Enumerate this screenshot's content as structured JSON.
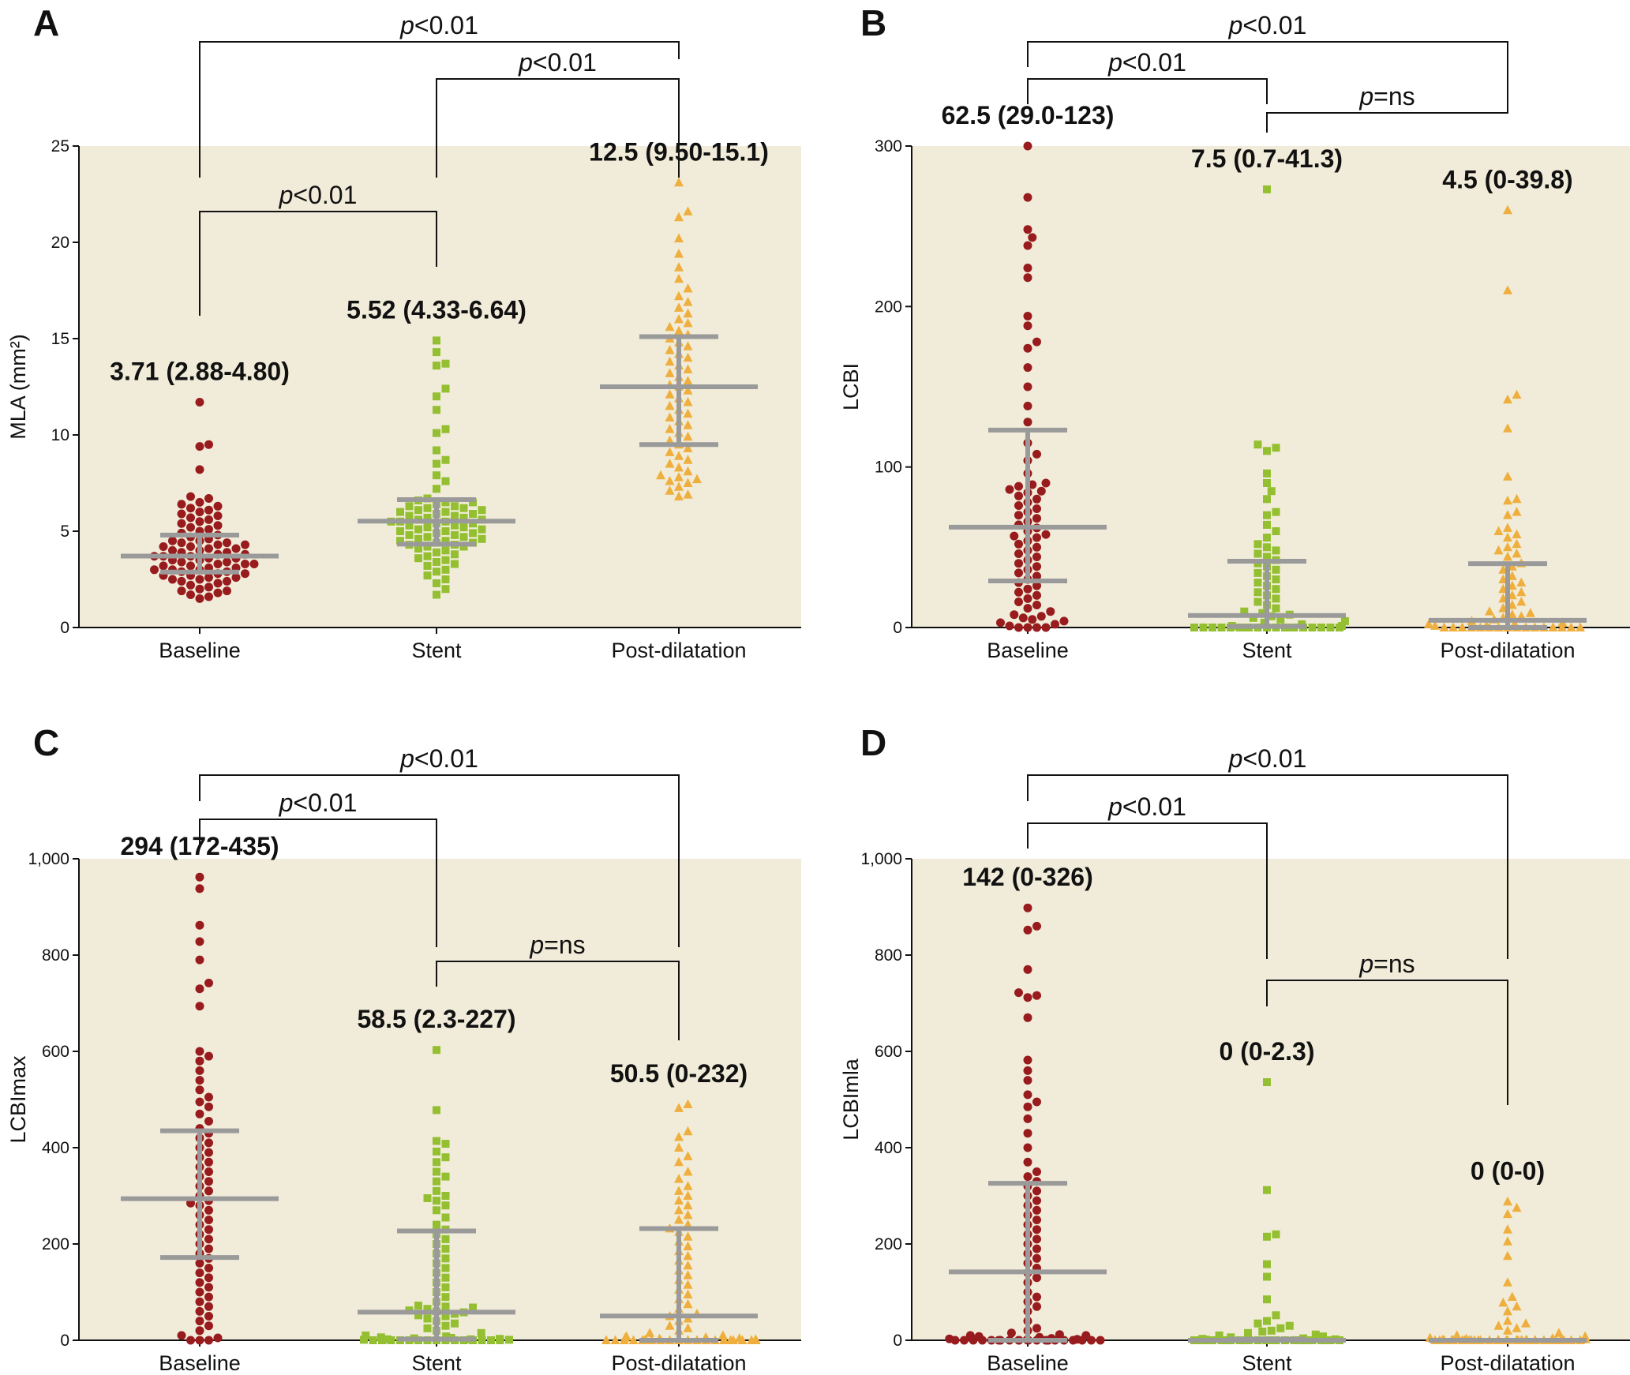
{
  "colors": {
    "plot_bg": "#f1ecd9",
    "baseline": "#981b1e",
    "stent": "#93bf31",
    "post": "#efaf3e",
    "summary_bar": "#9a9a9a",
    "bracket": "#111111"
  },
  "chart_data": [
    {
      "panel_label": "A",
      "type": "scatter",
      "ylabel": "MLA (mm²)",
      "ylim": [
        0,
        25
      ],
      "yticks": [
        0,
        5,
        10,
        15,
        20,
        25
      ],
      "ytick_labels": [
        "0",
        "5",
        "10",
        "15",
        "20",
        "25"
      ],
      "categories": [
        "Baseline",
        "Stent",
        "Post-dilatation"
      ],
      "markers": [
        "circle",
        "square",
        "triangle"
      ],
      "summary": [
        {
          "median": 3.71,
          "q1": 2.88,
          "q3": 4.8,
          "label": "3.71 (2.88-4.80)"
        },
        {
          "median": 5.52,
          "q1": 4.33,
          "q3": 6.64,
          "label": "5.52 (4.33-6.64)"
        },
        {
          "median": 12.5,
          "q1": 9.5,
          "q3": 15.1,
          "label": "12.5 (9.50-15.1)"
        }
      ],
      "comparisons": [
        {
          "from": 0,
          "to": 1,
          "p_symbol": "p",
          "text": "<0.01"
        },
        {
          "from": 1,
          "to": 2,
          "p_symbol": "p",
          "text": "<0.01"
        },
        {
          "from": 0,
          "to": 2,
          "p_symbol": "p",
          "text": "<0.01"
        }
      ],
      "points": [
        [
          11.7,
          9.5,
          9.4,
          8.2,
          6.8,
          6.7,
          6.5,
          6.4,
          6.3,
          6.2,
          6.1,
          6.0,
          5.9,
          5.8,
          5.7,
          5.6,
          5.5,
          5.4,
          5.3,
          5.2,
          5.1,
          5.0,
          4.9,
          4.8,
          4.7,
          4.6,
          4.5,
          4.5,
          4.4,
          4.4,
          4.3,
          4.3,
          4.2,
          4.2,
          4.1,
          4.1,
          4.0,
          4.0,
          3.9,
          3.9,
          3.8,
          3.8,
          3.7,
          3.7,
          3.7,
          3.6,
          3.6,
          3.5,
          3.5,
          3.4,
          3.4,
          3.3,
          3.3,
          3.3,
          3.2,
          3.2,
          3.1,
          3.1,
          3.0,
          3.0,
          3.0,
          2.9,
          2.9,
          2.8,
          2.8,
          2.7,
          2.7,
          2.6,
          2.6,
          2.5,
          2.5,
          2.4,
          2.4,
          2.3,
          2.2,
          2.1,
          2.0,
          1.9,
          1.9,
          1.8,
          1.7,
          1.6,
          1.5
        ],
        [
          14.9,
          14.3,
          13.7,
          13.6,
          12.4,
          12.0,
          11.3,
          10.3,
          10.1,
          9.2,
          8.7,
          8.5,
          7.9,
          7.6,
          7.2,
          6.7,
          6.6,
          6.5,
          6.5,
          6.4,
          6.3,
          6.3,
          6.2,
          6.2,
          6.1,
          6.1,
          6.0,
          6.0,
          5.9,
          5.9,
          5.8,
          5.8,
          5.7,
          5.7,
          5.6,
          5.6,
          5.5,
          5.5,
          5.5,
          5.4,
          5.4,
          5.3,
          5.3,
          5.2,
          5.2,
          5.1,
          5.1,
          5.0,
          5.0,
          4.9,
          4.9,
          4.8,
          4.8,
          4.7,
          4.7,
          4.6,
          4.6,
          4.5,
          4.5,
          4.4,
          4.4,
          4.3,
          4.3,
          4.2,
          4.2,
          4.1,
          4.0,
          3.9,
          3.8,
          3.7,
          3.6,
          3.5,
          3.4,
          3.3,
          3.2,
          3.0,
          2.9,
          2.7,
          2.5,
          2.3,
          2.0,
          1.7
        ],
        [
          23.1,
          21.6,
          21.3,
          20.2,
          19.4,
          18.7,
          18.1,
          17.6,
          17.2,
          16.9,
          16.6,
          16.3,
          16.0,
          15.8,
          15.6,
          15.4,
          15.2,
          15.0,
          14.8,
          14.6,
          14.4,
          14.2,
          14.0,
          13.8,
          13.6,
          13.4,
          13.2,
          13.0,
          12.8,
          12.6,
          12.5,
          12.3,
          12.1,
          11.9,
          11.7,
          11.5,
          11.3,
          11.1,
          10.9,
          10.7,
          10.5,
          10.3,
          10.1,
          9.9,
          9.7,
          9.5,
          9.3,
          9.1,
          8.9,
          8.7,
          8.5,
          8.3,
          8.1,
          7.9,
          7.8,
          7.7,
          7.6,
          7.5,
          7.3,
          7.1,
          6.9,
          6.8
        ]
      ]
    },
    {
      "panel_label": "B",
      "type": "scatter",
      "ylabel": "LCBI",
      "ylim": [
        0,
        300
      ],
      "yticks": [
        0,
        100,
        200,
        300
      ],
      "ytick_labels": [
        "0",
        "100",
        "200",
        "300"
      ],
      "categories": [
        "Baseline",
        "Stent",
        "Post-dilatation"
      ],
      "markers": [
        "circle",
        "square",
        "triangle"
      ],
      "summary": [
        {
          "median": 62.5,
          "q1": 29.0,
          "q3": 123,
          "label": "62.5 (29.0-123)"
        },
        {
          "median": 7.5,
          "q1": 0.7,
          "q3": 41.3,
          "label": "7.5 (0.7-41.3)"
        },
        {
          "median": 4.5,
          "q1": 0,
          "q3": 39.8,
          "label": "4.5 (0-39.8)"
        }
      ],
      "comparisons": [
        {
          "from": 0,
          "to": 1,
          "p_symbol": "p",
          "text": "<0.01"
        },
        {
          "from": 1,
          "to": 2,
          "p_symbol": "p",
          "text": "=ns"
        },
        {
          "from": 0,
          "to": 2,
          "p_symbol": "p",
          "text": "<0.01"
        }
      ],
      "points": [
        [
          300,
          268,
          248,
          243,
          238,
          224,
          218,
          194,
          188,
          178,
          174,
          162,
          150,
          138,
          128,
          115,
          108,
          104,
          96,
          90,
          89,
          88,
          86,
          85,
          84,
          82,
          80,
          78,
          76,
          74,
          72,
          70,
          68,
          66,
          64,
          62,
          60,
          58,
          57,
          56,
          54,
          52,
          50,
          48,
          46,
          44,
          42,
          40,
          38,
          36,
          34,
          32,
          30,
          28,
          26,
          24,
          22,
          20,
          18,
          16,
          14,
          12,
          10,
          8,
          7,
          6,
          5,
          4,
          3,
          2,
          1,
          0,
          0,
          0,
          0
        ],
        [
          273,
          114,
          112,
          110,
          96,
          90,
          85,
          80,
          72,
          70,
          64,
          60,
          56,
          52,
          50,
          48,
          46,
          44,
          42,
          40,
          38,
          36,
          34,
          32,
          30,
          28,
          26,
          24,
          22,
          20,
          18,
          16,
          14,
          12,
          10,
          9,
          8,
          7,
          6,
          5,
          4,
          3,
          2,
          1,
          1,
          0,
          0,
          0,
          0,
          0,
          0,
          0,
          0,
          0,
          0,
          0,
          0,
          0,
          0,
          0,
          0,
          0,
          0,
          0
        ],
        [
          260,
          210,
          145,
          142,
          124,
          94,
          80,
          79,
          72,
          70,
          62,
          60,
          58,
          56,
          52,
          50,
          48,
          46,
          44,
          40,
          38,
          36,
          32,
          30,
          28,
          26,
          24,
          22,
          20,
          18,
          16,
          14,
          12,
          10,
          9,
          8,
          7,
          6,
          5,
          4,
          3,
          2,
          2,
          1,
          1,
          1,
          0,
          0,
          0,
          0,
          0,
          0,
          0,
          0,
          0,
          0,
          0,
          0,
          0,
          0,
          0,
          0
        ]
      ]
    },
    {
      "panel_label": "C",
      "type": "scatter",
      "ylabel": "LCBImax",
      "ylim": [
        0,
        1000
      ],
      "yticks": [
        0,
        200,
        400,
        600,
        800,
        1000
      ],
      "ytick_labels": [
        "0",
        "200",
        "400",
        "600",
        "800",
        "1,000"
      ],
      "categories": [
        "Baseline",
        "Stent",
        "Post-dilatation"
      ],
      "markers": [
        "circle",
        "square",
        "triangle"
      ],
      "summary": [
        {
          "median": 294,
          "q1": 172,
          "q3": 435,
          "label": "294 (172-435)"
        },
        {
          "median": 58.5,
          "q1": 2.3,
          "q3": 227,
          "label": "58.5 (2.3-227)"
        },
        {
          "median": 50.5,
          "q1": 0,
          "q3": 232,
          "label": "50.5 (0-232)"
        }
      ],
      "comparisons": [
        {
          "from": 0,
          "to": 1,
          "p_symbol": "p",
          "text": "<0.01"
        },
        {
          "from": 1,
          "to": 2,
          "p_symbol": "p",
          "text": "=ns"
        },
        {
          "from": 0,
          "to": 2,
          "p_symbol": "p",
          "text": "<0.01"
        }
      ],
      "points": [
        [
          962,
          938,
          862,
          828,
          790,
          742,
          730,
          694,
          600,
          590,
          580,
          560,
          540,
          520,
          505,
          495,
          485,
          470,
          455,
          440,
          430,
          420,
          410,
          400,
          390,
          380,
          370,
          360,
          350,
          340,
          330,
          320,
          310,
          300,
          290,
          285,
          280,
          270,
          260,
          250,
          240,
          230,
          220,
          210,
          200,
          190,
          180,
          170,
          160,
          150,
          140,
          130,
          120,
          110,
          100,
          90,
          80,
          70,
          60,
          50,
          40,
          30,
          20,
          10,
          5,
          0,
          0,
          0
        ],
        [
          603,
          478,
          414,
          408,
          392,
          380,
          370,
          350,
          340,
          330,
          310,
          300,
          295,
          290,
          280,
          270,
          255,
          240,
          230,
          220,
          210,
          200,
          190,
          180,
          170,
          160,
          150,
          140,
          130,
          120,
          110,
          100,
          90,
          80,
          72,
          70,
          68,
          65,
          62,
          60,
          58,
          55,
          52,
          50,
          45,
          40,
          35,
          30,
          25,
          20,
          15,
          10,
          8,
          6,
          5,
          4,
          3,
          2,
          2,
          1,
          1,
          0,
          0,
          0,
          0,
          0,
          0,
          0,
          0,
          0,
          0,
          0,
          0,
          0,
          0,
          0
        ],
        [
          490,
          482,
          434,
          422,
          400,
          382,
          370,
          350,
          335,
          320,
          310,
          300,
          290,
          280,
          270,
          260,
          250,
          240,
          232,
          225,
          215,
          205,
          195,
          185,
          175,
          165,
          155,
          145,
          135,
          125,
          115,
          105,
          95,
          85,
          75,
          65,
          55,
          50,
          45,
          40,
          30,
          25,
          20,
          15,
          10,
          8,
          6,
          5,
          4,
          3,
          2,
          1,
          0,
          0,
          0,
          0,
          0,
          0,
          0,
          0,
          0,
          0,
          0,
          0,
          0,
          0,
          0,
          0,
          0,
          0,
          0,
          0,
          0,
          0
        ]
      ]
    },
    {
      "panel_label": "D",
      "type": "scatter",
      "ylabel": "LCBImla",
      "ylim": [
        0,
        1000
      ],
      "yticks": [
        0,
        200,
        400,
        600,
        800,
        1000
      ],
      "ytick_labels": [
        "0",
        "200",
        "400",
        "600",
        "800",
        "1,000"
      ],
      "categories": [
        "Baseline",
        "Stent",
        "Post-dilatation"
      ],
      "markers": [
        "circle",
        "square",
        "triangle"
      ],
      "summary": [
        {
          "median": 142,
          "q1": 0,
          "q3": 326,
          "label": "142 (0-326)"
        },
        {
          "median": 0,
          "q1": 0,
          "q3": 2.3,
          "label": "0 (0-2.3)"
        },
        {
          "median": 0,
          "q1": 0,
          "q3": 0,
          "label": "0 (0-0)"
        }
      ],
      "comparisons": [
        {
          "from": 0,
          "to": 1,
          "p_symbol": "p",
          "text": "<0.01"
        },
        {
          "from": 1,
          "to": 2,
          "p_symbol": "p",
          "text": "=ns"
        },
        {
          "from": 0,
          "to": 2,
          "p_symbol": "p",
          "text": "<0.01"
        }
      ],
      "points": [
        [
          898,
          860,
          852,
          770,
          722,
          716,
          712,
          670,
          582,
          560,
          540,
          510,
          495,
          485,
          460,
          430,
          400,
          370,
          350,
          340,
          330,
          320,
          310,
          300,
          290,
          280,
          270,
          260,
          250,
          240,
          230,
          220,
          210,
          200,
          190,
          180,
          170,
          160,
          150,
          140,
          130,
          120,
          100,
          90,
          80,
          70,
          60,
          40,
          25,
          20,
          15,
          12,
          10,
          10,
          8,
          6,
          5,
          4,
          3,
          2,
          1,
          0,
          0,
          0,
          0,
          0,
          0,
          0,
          0,
          0,
          0,
          0,
          0,
          0,
          0,
          0,
          0,
          0,
          0,
          0,
          0,
          0,
          0
        ],
        [
          536,
          312,
          220,
          215,
          158,
          132,
          85,
          52,
          40,
          35,
          30,
          25,
          20,
          18,
          15,
          12,
          10,
          8,
          6,
          4,
          3,
          2,
          1,
          0,
          0,
          0,
          0,
          0,
          0,
          0,
          0,
          0,
          0,
          0,
          0,
          0,
          0,
          0,
          0,
          0,
          0,
          0,
          0,
          0,
          0,
          0,
          0,
          0,
          0,
          0,
          0,
          0,
          0
        ],
        [
          288,
          275,
          262,
          230,
          205,
          175,
          120,
          90,
          78,
          70,
          60,
          40,
          35,
          30,
          25,
          20,
          15,
          10,
          8,
          5,
          4,
          3,
          2,
          1,
          0,
          0,
          0,
          0,
          0,
          0,
          0,
          0,
          0,
          0,
          0,
          0,
          0,
          0,
          0,
          0,
          0,
          0,
          0,
          0,
          0,
          0,
          0,
          0,
          0,
          0,
          0,
          0,
          0,
          0,
          0,
          0,
          0,
          0,
          0,
          0
        ]
      ]
    }
  ]
}
